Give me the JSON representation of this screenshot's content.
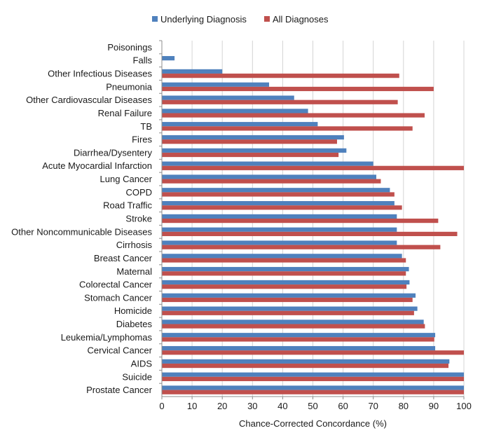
{
  "chart_data": {
    "type": "bar",
    "orientation": "horizontal",
    "title": "",
    "xlabel": "Chance-Corrected Concordance (%)",
    "ylabel": "",
    "xlim": [
      0,
      100
    ],
    "xticks": [
      0,
      10,
      20,
      30,
      40,
      50,
      60,
      70,
      80,
      90,
      100
    ],
    "grid": true,
    "legend_position": "top",
    "categories": [
      "Poisonings",
      "Falls",
      "Other Infectious Diseases",
      "Pneumonia",
      "Other Cardiovascular Diseases",
      "Renal Failure",
      "TB",
      "Fires",
      "Diarrhea/Dysentery",
      "Acute Myocardial Infarction",
      "Lung Cancer",
      "COPD",
      "Road Traffic",
      "Stroke",
      "Other Noncommunicable Diseases",
      "Cirrhosis",
      "Breast Cancer",
      "Maternal",
      "Colorectal Cancer",
      "Stomach Cancer",
      "Homicide",
      "Diabetes",
      "Leukemia/Lymphomas",
      "Cervical Cancer",
      "AIDS",
      "Suicide",
      "Prostate Cancer"
    ],
    "series": [
      {
        "name": "Underlying Diagnosis",
        "color": "#4f81bd",
        "values": [
          0,
          4.2,
          20,
          35.5,
          43.8,
          48.4,
          51.6,
          60.3,
          61.1,
          70,
          71,
          75.5,
          77,
          77.8,
          77.8,
          77.8,
          79.5,
          81.8,
          82,
          84,
          84.6,
          86.7,
          90.5,
          90.5,
          95.2,
          100,
          100
        ]
      },
      {
        "name": "All Diagnoses",
        "color": "#c0504d",
        "values": [
          0,
          0,
          78.6,
          90,
          78.1,
          87,
          83,
          58,
          58.5,
          100,
          72.5,
          77,
          79.5,
          91.5,
          97.8,
          92.2,
          80.8,
          80.8,
          81,
          83,
          83.5,
          87.1,
          90.2,
          100,
          94.9,
          100,
          100
        ]
      }
    ]
  }
}
